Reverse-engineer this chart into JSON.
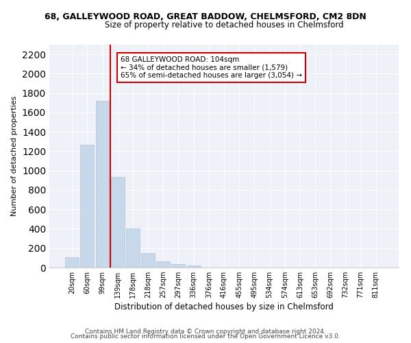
{
  "title1": "68, GALLEYWOOD ROAD, GREAT BADDOW, CHELMSFORD, CM2 8DN",
  "title2": "Size of property relative to detached houses in Chelmsford",
  "xlabel": "Distribution of detached houses by size in Chelmsford",
  "ylabel": "Number of detached properties",
  "bar_color": "#c8d8eb",
  "bar_edge_color": "#b0c4d8",
  "categories": [
    "20sqm",
    "60sqm",
    "99sqm",
    "139sqm",
    "178sqm",
    "218sqm",
    "257sqm",
    "297sqm",
    "336sqm",
    "376sqm",
    "416sqm",
    "455sqm",
    "495sqm",
    "534sqm",
    "574sqm",
    "613sqm",
    "653sqm",
    "692sqm",
    "732sqm",
    "771sqm",
    "811sqm"
  ],
  "values": [
    107,
    1265,
    1720,
    935,
    405,
    150,
    65,
    35,
    22,
    0,
    0,
    0,
    0,
    0,
    0,
    0,
    0,
    0,
    0,
    0,
    0
  ],
  "ylim": [
    0,
    2300
  ],
  "yticks": [
    0,
    200,
    400,
    600,
    800,
    1000,
    1200,
    1400,
    1600,
    1800,
    2000,
    2200
  ],
  "vline_x": 2.5,
  "annotation_title": "68 GALLEYWOOD ROAD: 104sqm",
  "annotation_line1": "← 34% of detached houses are smaller (1,579)",
  "annotation_line2": "65% of semi-detached houses are larger (3,054) →",
  "footer1": "Contains HM Land Registry data © Crown copyright and database right 2024.",
  "footer2": "Contains public sector information licensed under the Open Government Licence v3.0.",
  "bg_color": "#ffffff",
  "plot_bg_color": "#eef2f8",
  "annotation_box_color": "#ffffff",
  "annotation_box_edge": "#cc0000",
  "vline_color": "#cc0000",
  "grid_color": "#ffffff",
  "title1_fontsize": 9,
  "title2_fontsize": 8.5,
  "ylabel_fontsize": 8,
  "xlabel_fontsize": 8.5,
  "tick_fontsize": 7,
  "annotation_fontsize": 7.5,
  "footer_fontsize": 6.5
}
